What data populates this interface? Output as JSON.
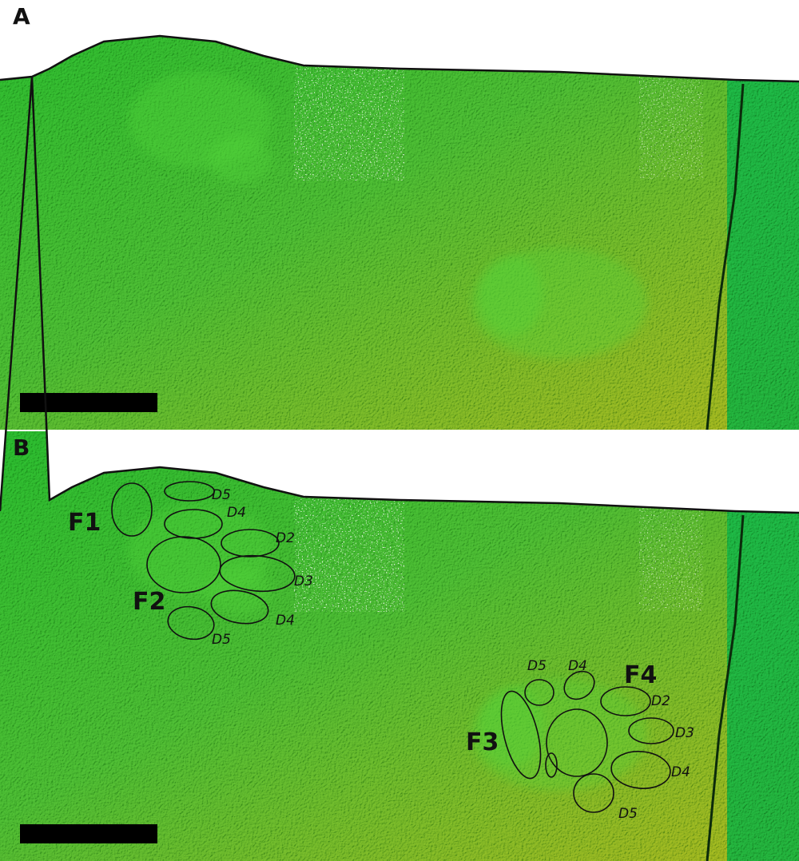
{
  "panels": [
    {
      "label": "A"
    },
    {
      "label": "B",
      "annotations": [
        {
          "text": "F1"
        },
        {
          "text": "D5"
        },
        {
          "text": "D4"
        },
        {
          "text": "D2"
        },
        {
          "text": "D3"
        },
        {
          "text": "F2"
        },
        {
          "text": "D4"
        },
        {
          "text": "D5"
        },
        {
          "text": "D5"
        },
        {
          "text": "D4"
        },
        {
          "text": "F4"
        },
        {
          "text": "D2"
        },
        {
          "text": "F3"
        },
        {
          "text": "D3"
        },
        {
          "text": "D4"
        },
        {
          "text": "D5"
        }
      ]
    }
  ]
}
